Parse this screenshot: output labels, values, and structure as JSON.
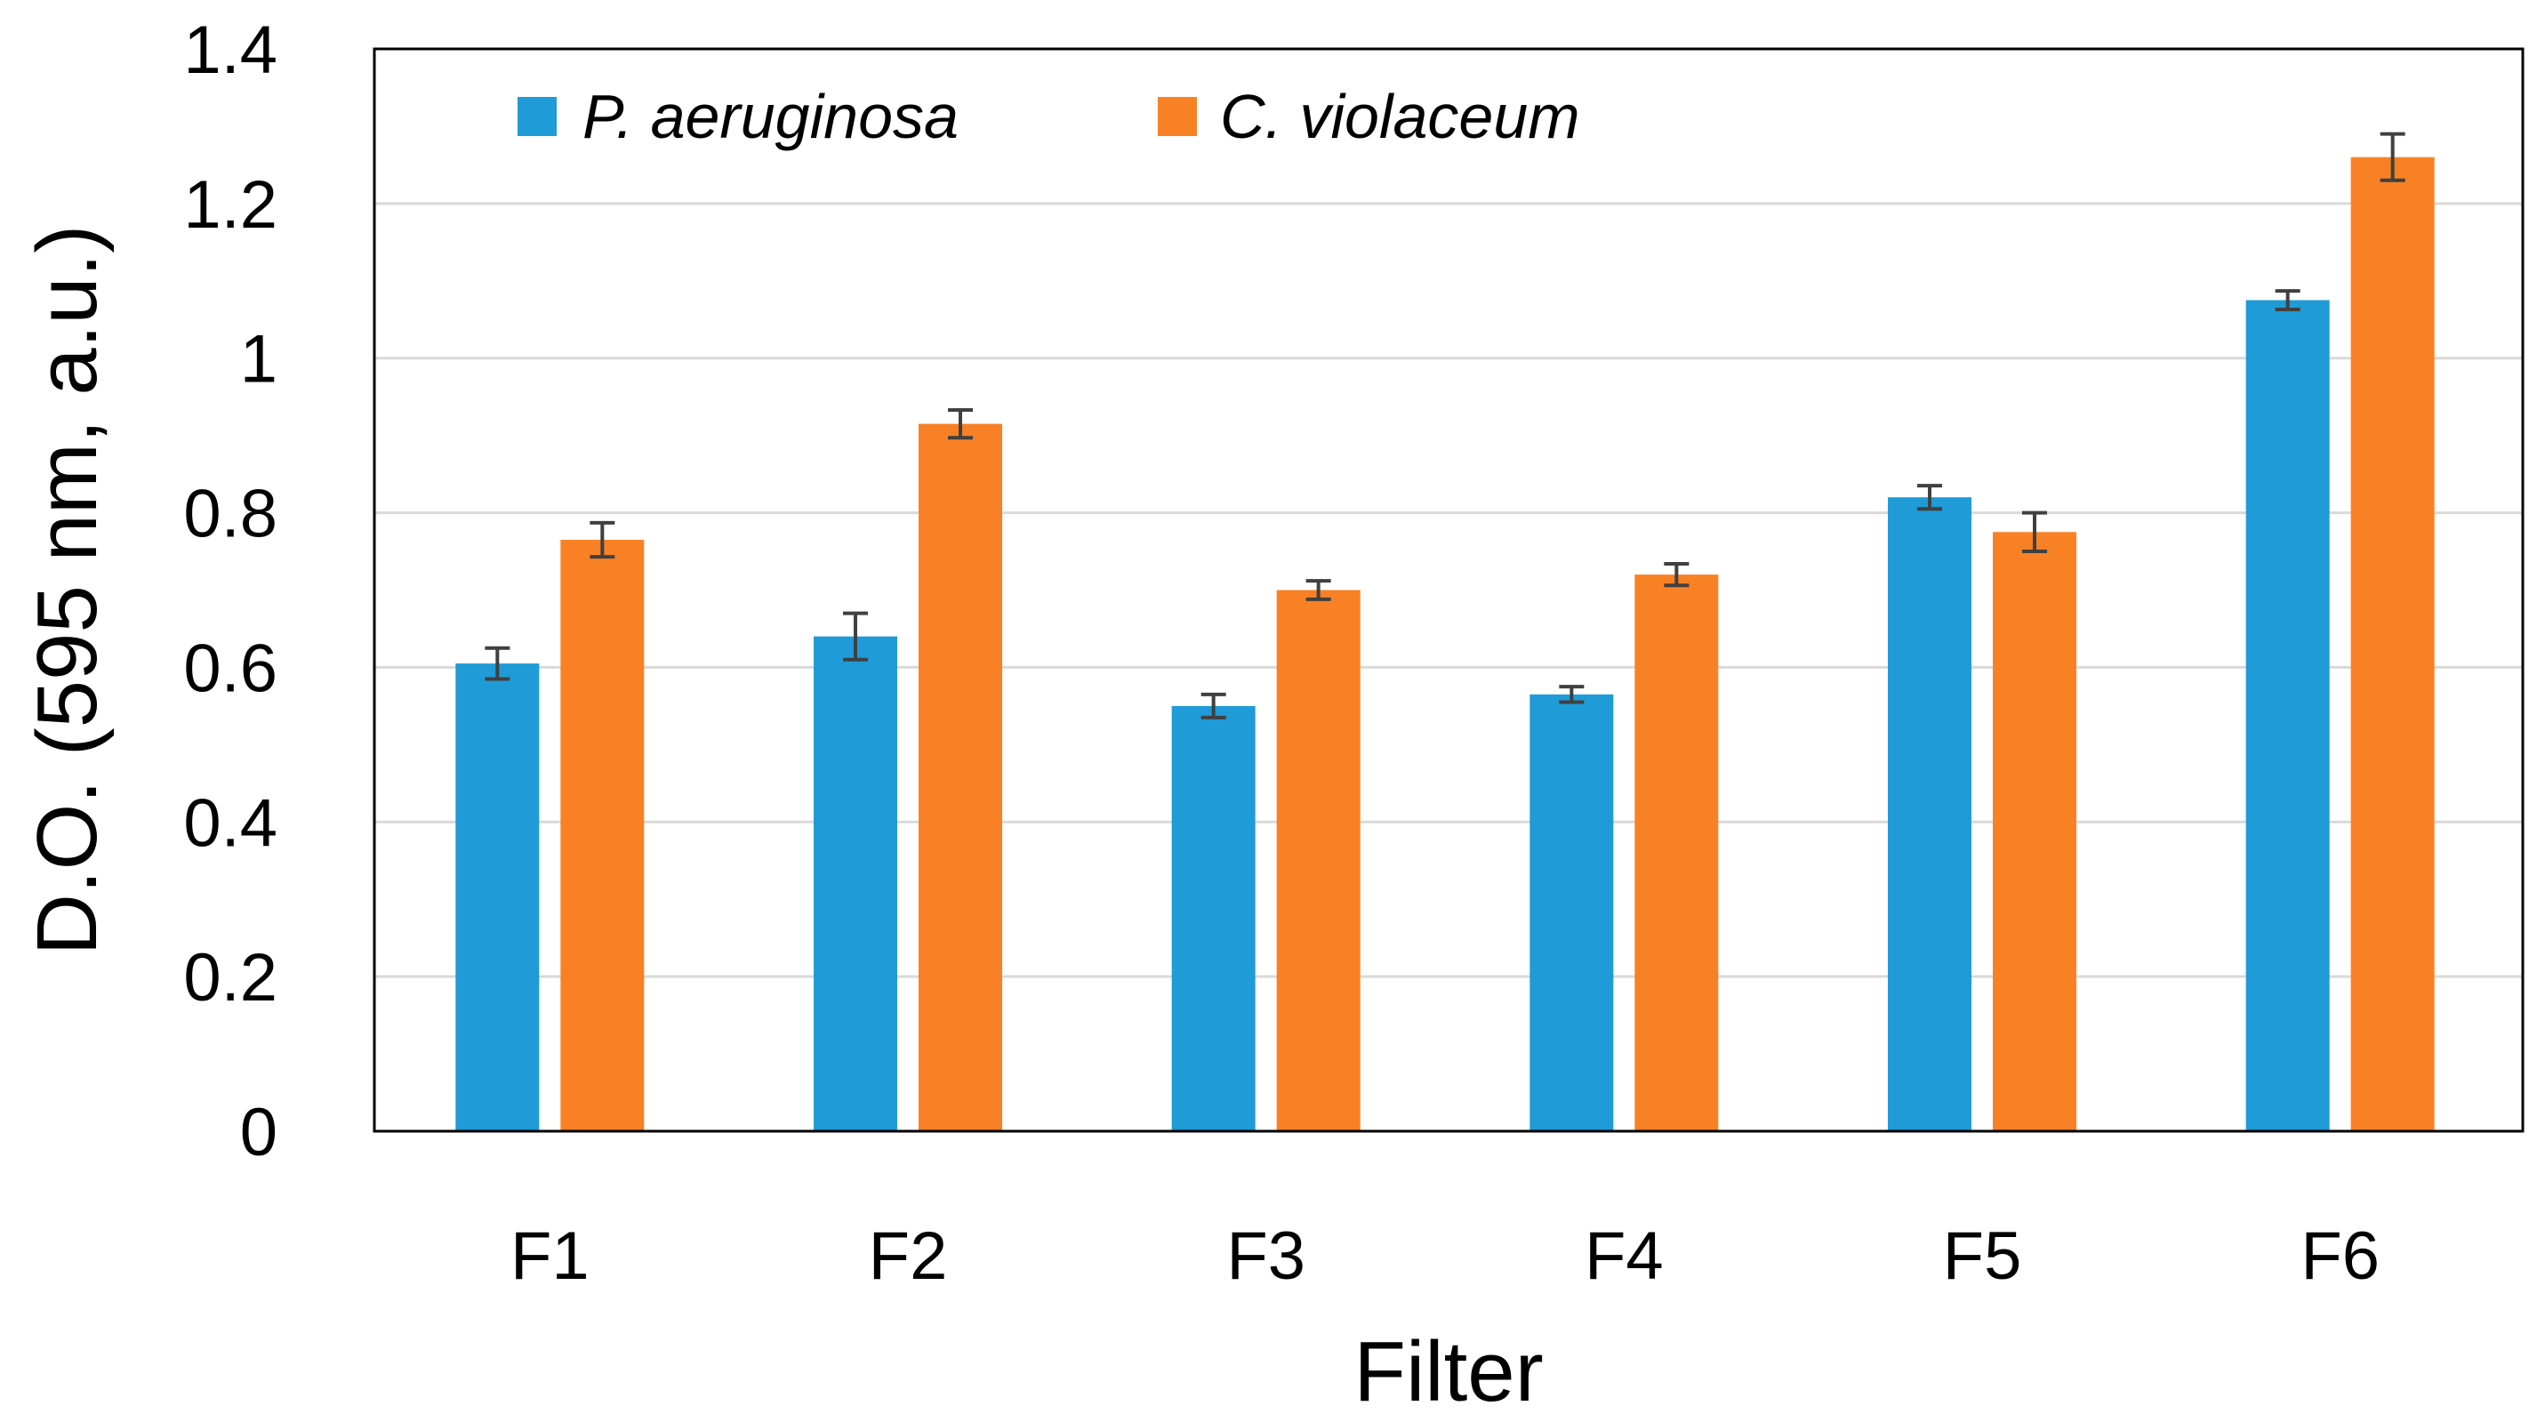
{
  "chart_data": {
    "type": "bar",
    "xlabel": "Filter",
    "ylabel": "D.O. (595 nm, a.u.)",
    "categories": [
      "F1",
      "F2",
      "F3",
      "F4",
      "F5",
      "F6"
    ],
    "ylim": [
      0,
      1.4
    ],
    "yticks": [
      "0",
      "0.2",
      "0.4",
      "0.6",
      "0.8",
      "1",
      "1.2",
      "1.4"
    ],
    "ytick_values": [
      0,
      0.2,
      0.4,
      0.6,
      0.8,
      1.0,
      1.2,
      1.4
    ],
    "grid": true,
    "legend_position": "top-left, inside plot",
    "series": [
      {
        "name": "P. aeruginosa",
        "color": "#1f9bd7",
        "values": [
          0.605,
          0.64,
          0.55,
          0.565,
          0.82,
          1.075
        ],
        "errors": [
          0.02,
          0.03,
          0.015,
          0.01,
          0.015,
          0.012
        ]
      },
      {
        "name": "C. violaceum",
        "color": "#f98125",
        "values": [
          0.765,
          0.915,
          0.7,
          0.72,
          0.775,
          1.26
        ],
        "errors": [
          0.022,
          0.018,
          0.012,
          0.014,
          0.025,
          0.03
        ]
      }
    ]
  }
}
